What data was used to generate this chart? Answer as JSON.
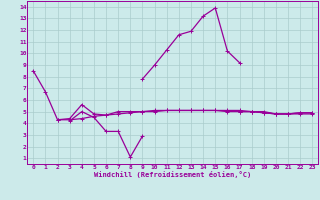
{
  "xlabel": "Windchill (Refroidissement éolien,°C)",
  "xlim": [
    -0.5,
    23.5
  ],
  "ylim": [
    0.5,
    14.5
  ],
  "xticks": [
    0,
    1,
    2,
    3,
    4,
    5,
    6,
    7,
    8,
    9,
    10,
    11,
    12,
    13,
    14,
    15,
    16,
    17,
    18,
    19,
    20,
    21,
    22,
    23
  ],
  "yticks": [
    1,
    2,
    3,
    4,
    5,
    6,
    7,
    8,
    9,
    10,
    11,
    12,
    13,
    14
  ],
  "bg_color": "#cceaea",
  "grid_color": "#aacccc",
  "line_color": "#990099",
  "series": [
    {
      "x": [
        0,
        1,
        2,
        3,
        4,
        5,
        6,
        7,
        8,
        9,
        10,
        11,
        12,
        13,
        14,
        15,
        16,
        17,
        18,
        19,
        20,
        21,
        22,
        23
      ],
      "y": [
        8.5,
        6.7,
        4.3,
        4.4,
        5.6,
        4.8,
        4.7,
        5.0,
        5.0,
        5.0,
        5.1,
        5.1,
        5.1,
        5.1,
        5.1,
        5.1,
        5.1,
        5.1,
        5.0,
        5.0,
        4.8,
        4.8,
        4.8,
        4.8
      ]
    },
    {
      "x": [
        3,
        4,
        5,
        6,
        7,
        8,
        9
      ],
      "y": [
        4.2,
        5.0,
        4.5,
        3.3,
        3.3,
        1.1,
        2.9
      ]
    },
    {
      "x": [
        9,
        10,
        11,
        12,
        13,
        14,
        15,
        16,
        17
      ],
      "y": [
        7.8,
        9.0,
        10.3,
        11.6,
        11.9,
        13.2,
        13.9,
        10.2,
        9.2
      ]
    },
    {
      "x": [
        2,
        3,
        4,
        5,
        6,
        7,
        8,
        9,
        10,
        11,
        12,
        13,
        14,
        15,
        16,
        17,
        18,
        19,
        20,
        21,
        22,
        23
      ],
      "y": [
        4.3,
        4.3,
        4.4,
        4.6,
        4.7,
        4.8,
        4.9,
        5.0,
        5.0,
        5.1,
        5.1,
        5.1,
        5.1,
        5.1,
        5.0,
        5.0,
        5.0,
        4.9,
        4.8,
        4.8,
        4.9,
        4.9
      ]
    },
    {
      "x": [
        17,
        18,
        19,
        20,
        21,
        22,
        23
      ],
      "y": [
        5.0,
        5.0,
        4.9,
        4.8,
        4.8,
        4.9,
        4.9
      ]
    }
  ]
}
